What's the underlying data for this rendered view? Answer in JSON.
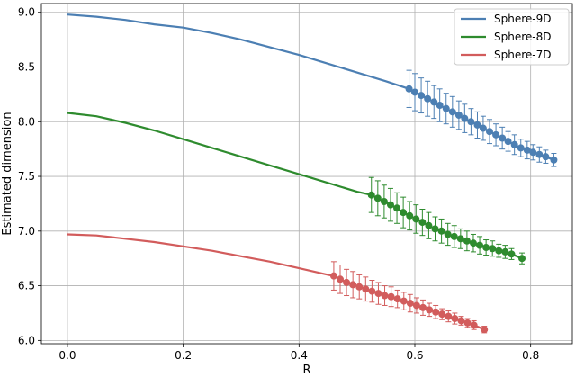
{
  "chart_data": {
    "type": "line",
    "xlabel": "R",
    "ylabel": "Estimated dimension",
    "xlim": [
      -0.045,
      0.872
    ],
    "ylim": [
      5.97,
      9.08
    ],
    "xticks": [
      "0.0",
      "0.2",
      "0.4",
      "0.6",
      "0.8"
    ],
    "xtick_values": [
      0.0,
      0.2,
      0.4,
      0.6,
      0.8
    ],
    "yticks": [
      "6.0",
      "6.5",
      "7.0",
      "7.5",
      "8.0",
      "8.5",
      "9.0"
    ],
    "ytick_values": [
      6.0,
      6.5,
      7.0,
      7.5,
      8.0,
      8.5,
      9.0
    ],
    "grid": true,
    "legend_position": "top-right",
    "series": [
      {
        "name": "Sphere-9D",
        "color": "#4C7FB3",
        "curve_x": [
          0.0,
          0.05,
          0.1,
          0.15,
          0.2,
          0.25,
          0.3,
          0.35,
          0.4,
          0.45,
          0.5,
          0.55,
          0.59
        ],
        "curve_y": [
          8.98,
          8.96,
          8.93,
          8.89,
          8.86,
          8.81,
          8.75,
          8.68,
          8.61,
          8.53,
          8.45,
          8.37,
          8.3
        ],
        "points_x": [
          0.59,
          0.6,
          0.611,
          0.622,
          0.633,
          0.643,
          0.654,
          0.665,
          0.676,
          0.686,
          0.697,
          0.708,
          0.718,
          0.729,
          0.74,
          0.751,
          0.761,
          0.772,
          0.783,
          0.794,
          0.804,
          0.815,
          0.826,
          0.84
        ],
        "points_y": [
          8.3,
          8.27,
          8.24,
          8.21,
          8.18,
          8.15,
          8.12,
          8.09,
          8.06,
          8.03,
          8.0,
          7.97,
          7.94,
          7.91,
          7.88,
          7.85,
          7.82,
          7.79,
          7.76,
          7.74,
          7.72,
          7.7,
          7.68,
          7.65
        ],
        "err": [
          0.17,
          0.17,
          0.16,
          0.16,
          0.15,
          0.15,
          0.14,
          0.14,
          0.13,
          0.13,
          0.12,
          0.12,
          0.11,
          0.11,
          0.1,
          0.1,
          0.09,
          0.09,
          0.08,
          0.08,
          0.07,
          0.07,
          0.06,
          0.06
        ]
      },
      {
        "name": "Sphere-8D",
        "color": "#2E8B2E",
        "curve_x": [
          0.0,
          0.05,
          0.1,
          0.15,
          0.2,
          0.25,
          0.3,
          0.35,
          0.4,
          0.45,
          0.5,
          0.525
        ],
        "curve_y": [
          8.08,
          8.05,
          7.99,
          7.92,
          7.84,
          7.76,
          7.68,
          7.6,
          7.52,
          7.44,
          7.36,
          7.33
        ],
        "points_x": [
          0.525,
          0.536,
          0.547,
          0.558,
          0.569,
          0.58,
          0.591,
          0.602,
          0.613,
          0.624,
          0.635,
          0.646,
          0.657,
          0.668,
          0.679,
          0.69,
          0.701,
          0.712,
          0.723,
          0.734,
          0.745,
          0.756,
          0.767,
          0.785
        ],
        "points_y": [
          7.33,
          7.3,
          7.27,
          7.24,
          7.21,
          7.17,
          7.14,
          7.11,
          7.08,
          7.05,
          7.02,
          7.0,
          6.97,
          6.95,
          6.93,
          6.91,
          6.89,
          6.87,
          6.85,
          6.84,
          6.82,
          6.81,
          6.79,
          6.75
        ],
        "err": [
          0.16,
          0.16,
          0.15,
          0.15,
          0.14,
          0.14,
          0.13,
          0.13,
          0.12,
          0.12,
          0.11,
          0.11,
          0.1,
          0.1,
          0.09,
          0.09,
          0.08,
          0.08,
          0.07,
          0.07,
          0.06,
          0.06,
          0.05,
          0.05
        ]
      },
      {
        "name": "Sphere-7D",
        "color": "#D25C5C",
        "curve_x": [
          0.0,
          0.05,
          0.1,
          0.15,
          0.2,
          0.25,
          0.3,
          0.35,
          0.4,
          0.45,
          0.46
        ],
        "curve_y": [
          6.97,
          6.96,
          6.93,
          6.9,
          6.86,
          6.82,
          6.77,
          6.72,
          6.66,
          6.6,
          6.59
        ],
        "points_x": [
          0.46,
          0.471,
          0.482,
          0.493,
          0.504,
          0.515,
          0.526,
          0.537,
          0.548,
          0.559,
          0.57,
          0.581,
          0.592,
          0.603,
          0.614,
          0.625,
          0.636,
          0.647,
          0.658,
          0.669,
          0.68,
          0.691,
          0.702,
          0.72
        ],
        "points_y": [
          6.59,
          6.56,
          6.53,
          6.51,
          6.49,
          6.47,
          6.45,
          6.43,
          6.41,
          6.4,
          6.38,
          6.36,
          6.34,
          6.32,
          6.3,
          6.28,
          6.26,
          6.24,
          6.22,
          6.2,
          6.18,
          6.16,
          6.14,
          6.1
        ],
        "err": [
          0.13,
          0.13,
          0.12,
          0.12,
          0.11,
          0.11,
          0.1,
          0.1,
          0.09,
          0.09,
          0.08,
          0.08,
          0.08,
          0.07,
          0.07,
          0.06,
          0.06,
          0.05,
          0.05,
          0.05,
          0.04,
          0.04,
          0.04,
          0.03
        ]
      }
    ]
  }
}
